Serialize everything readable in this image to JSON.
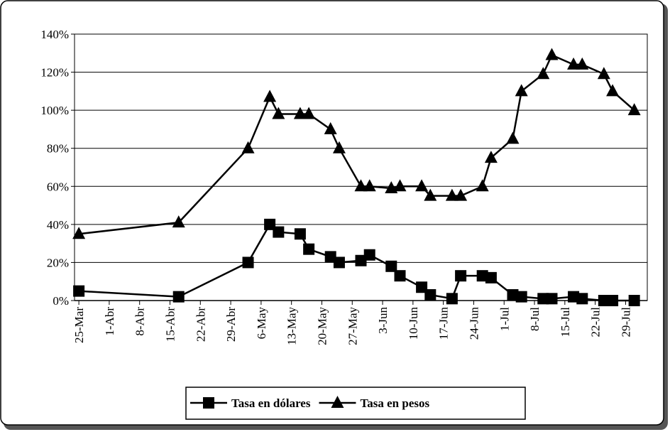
{
  "chart_data": {
    "type": "line",
    "x": [
      "25-Mar",
      "17-Abr",
      "3-May",
      "8-May",
      "10-May",
      "15-May",
      "17-May",
      "22-May",
      "24-May",
      "29-May",
      "31-May",
      "5-Jun",
      "7-Jun",
      "12-Jun",
      "14-Jun",
      "19-Jun",
      "21-Jun",
      "26-Jun",
      "28-Jun",
      "3-Jul",
      "5-Jul",
      "10-Jul",
      "12-Jul",
      "17-Jul",
      "19-Jul",
      "24-Jul",
      "26-Jul",
      "31-Jul"
    ],
    "series": [
      {
        "name": "Tasa en dólares",
        "color": "#000000",
        "marker": "square",
        "values": [
          5,
          2,
          20,
          40,
          36,
          35,
          27,
          23,
          20,
          21,
          24,
          18,
          13,
          7,
          3,
          1,
          13,
          13,
          12,
          3,
          2,
          1,
          1,
          2,
          1,
          0,
          0,
          0
        ]
      },
      {
        "name": "Tasa en pesos",
        "color": "#000000",
        "marker": "triangle",
        "values": [
          35,
          41,
          80,
          107,
          98,
          98,
          98,
          90,
          80,
          60,
          60,
          59,
          60,
          60,
          55,
          55,
          55,
          60,
          75,
          85,
          110,
          119,
          129,
          124,
          124,
          119,
          110,
          100
        ]
      }
    ],
    "xlim": [
      "24-Mar",
      "3-Aug"
    ],
    "xticks": [
      "25-Mar",
      "1-Abr",
      "8-Abr",
      "15-Abr",
      "22-Abr",
      "29-Abr",
      "6-May",
      "13-May",
      "20-May",
      "27-May",
      "3-Jun",
      "10-Jun",
      "17-Jun",
      "24-Jun",
      "1-Jul",
      "8-Jul",
      "15-Jul",
      "22-Jul",
      "29-Jul"
    ],
    "ylim": [
      0,
      140
    ],
    "yticks": [
      {
        "value": 0,
        "label": "0%"
      },
      {
        "value": 20,
        "label": "20%"
      },
      {
        "value": 40,
        "label": "40%"
      },
      {
        "value": 60,
        "label": "60%"
      },
      {
        "value": 80,
        "label": "80%"
      },
      {
        "value": 100,
        "label": "100%"
      },
      {
        "value": 120,
        "label": "120%"
      },
      {
        "value": 140,
        "label": "140%"
      }
    ],
    "grid": true,
    "legend": "bottom"
  }
}
